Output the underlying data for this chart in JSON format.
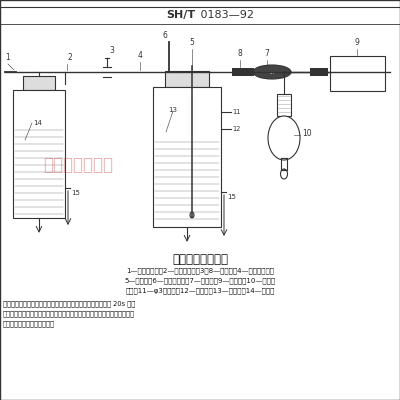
{
  "title_bold": "SH/T",
  "title_normal": " 0183—92",
  "diagram_title": "蒸汽发生器示意图",
  "legend_line1": "1—气体输入管；2—温水排出管；3，8—橡胶管；4—温水输入管；",
  "legend_line2": "5—温度计；6—气体排出管；7—干燥管；9—测爆仪；10—油气分",
  "legend_line3": "离器；11—φ3通气孔；12—封闭端；13—试样瓶；14—温水瓶",
  "body_line1": "调节到一定压力的压缩空气输入温水瓶内，使温水瓶内的水在 20s 内将",
  "body_line2": "下气体排出铜管，使排气孔处在油蒸气中，然后打开试样瓶温水输入管夹头",
  "body_line3": "爆仪示值恒定时，记录读数。",
  "watermark": "瑞博尔化玻仪器",
  "bg_color": "#ffffff",
  "line_color": "#333333",
  "watermark_color": "#d06060",
  "text_color": "#111111"
}
